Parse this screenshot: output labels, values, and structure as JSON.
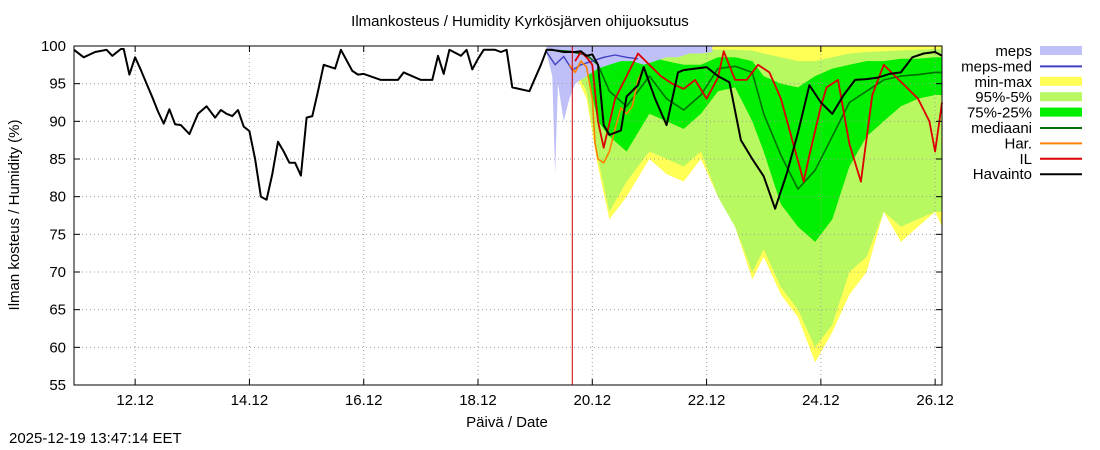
{
  "chart_data": {
    "type": "line",
    "title": "Ilmankosteus / Humidity  Kyrkösjärven ohijuoksutus",
    "xlabel": "Päivä / Date",
    "ylabel": "Ilman kosteus / Humidity (%)",
    "ylim": [
      55,
      100
    ],
    "xlim": [
      10.93,
      26.12
    ],
    "yticks": [
      55,
      60,
      65,
      70,
      75,
      80,
      85,
      90,
      95,
      100
    ],
    "xticks": [
      {
        "day": 12,
        "label": "12.12"
      },
      {
        "day": 14,
        "label": "14.12"
      },
      {
        "day": 16,
        "label": "16.12"
      },
      {
        "day": 18,
        "label": "18.12"
      },
      {
        "day": 20,
        "label": "20.12"
      },
      {
        "day": 22,
        "label": "22.12"
      },
      {
        "day": 24,
        "label": "24.12"
      },
      {
        "day": 26,
        "label": "26.12"
      }
    ],
    "grid": true,
    "forecast_start_day": 19.65,
    "legend_position": "right",
    "legend": [
      {
        "key": "meps",
        "label": "meps",
        "color": "#c0c0f8",
        "style": "box"
      },
      {
        "key": "meps_med",
        "label": "meps-med",
        "color": "#4040c0",
        "style": "line"
      },
      {
        "key": "minmax",
        "label": "min-max",
        "color": "#ffff55",
        "style": "box"
      },
      {
        "key": "p95_5",
        "label": "95%-5%",
        "color": "#b8f860",
        "style": "box"
      },
      {
        "key": "p75_25",
        "label": "75%-25%",
        "color": "#00ee00",
        "style": "box"
      },
      {
        "key": "median",
        "label": "mediaani",
        "color": "#007000",
        "style": "line"
      },
      {
        "key": "har",
        "label": "Har.",
        "color": "#ff8000",
        "style": "line"
      },
      {
        "key": "il",
        "label": "IL",
        "color": "#dd0000",
        "style": "line"
      },
      {
        "key": "obs",
        "label": "Havainto",
        "color": "#000000",
        "style": "line"
      }
    ],
    "series": [
      {
        "name": "Havainto",
        "key": "obs",
        "x": [
          10.93,
          11.1,
          11.3,
          11.5,
          11.6,
          11.75,
          11.8,
          11.9,
          12.0,
          12.1,
          12.2,
          12.3,
          12.4,
          12.5,
          12.6,
          12.7,
          12.8,
          12.95,
          13.1,
          13.25,
          13.4,
          13.5,
          13.6,
          13.7,
          13.8,
          13.9,
          14.0,
          14.1,
          14.2,
          14.3,
          14.4,
          14.5,
          14.6,
          14.7,
          14.8,
          14.9,
          15.0,
          15.1,
          15.2,
          15.3,
          15.5,
          15.6,
          15.8,
          15.9,
          16.0,
          16.3,
          16.6,
          16.7,
          17.0,
          17.2,
          17.3,
          17.4,
          17.5,
          17.7,
          17.8,
          17.9,
          18.0,
          18.1,
          18.3,
          18.4,
          18.5,
          18.6,
          18.9,
          19.1,
          19.2,
          19.3,
          19.5,
          19.7,
          19.8,
          19.9,
          20.0,
          20.1,
          20.2,
          20.3,
          20.5,
          20.6,
          20.8,
          20.9,
          21.1,
          21.3,
          21.5,
          21.6,
          21.8,
          22.0,
          22.2,
          22.4,
          22.6,
          22.8,
          23.0,
          23.2,
          23.4,
          23.6,
          23.8,
          24.0,
          24.2,
          24.4,
          24.6,
          24.8,
          25.0,
          25.2,
          25.4,
          25.6,
          25.8,
          26.0,
          26.12
        ],
        "y": [
          99.5,
          98.5,
          99.2,
          99.5,
          98.7,
          99.6,
          99.6,
          96.2,
          98.5,
          96.8,
          95,
          93.2,
          91.3,
          89.7,
          91.6,
          89.6,
          89.5,
          88.3,
          91,
          92,
          90.5,
          91.5,
          91,
          90.7,
          91.5,
          89.3,
          88.7,
          85,
          80,
          79.6,
          83,
          87.3,
          86,
          84.5,
          84.5,
          82.8,
          90.5,
          90.7,
          94,
          97.5,
          97,
          99.5,
          96.7,
          96.2,
          96.3,
          95.5,
          95.5,
          96.5,
          95.5,
          95.5,
          98.7,
          96.3,
          99.5,
          98.7,
          99.5,
          96.9,
          98.3,
          99.5,
          99.5,
          99.2,
          99.5,
          94.5,
          94,
          97.5,
          99.5,
          99.5,
          99.2,
          99.2,
          99.3,
          98.7,
          98.9,
          97.5,
          89.5,
          88.2,
          88.8,
          93.3,
          94.8,
          97.2,
          93,
          89.5,
          96.5,
          96.8,
          97,
          97.2,
          96,
          95.2,
          87.5,
          85,
          82.7,
          78.4,
          83,
          88.5,
          94.8,
          92.5,
          91,
          93.5,
          95.5,
          95.6,
          95.8,
          96.3,
          96.5,
          98.5,
          99,
          99.2,
          98.7
        ]
      },
      {
        "name": "mediaani",
        "key": "median",
        "x": [
          19.2,
          19.6,
          19.9,
          20.1,
          20.3,
          20.6,
          21.0,
          21.3,
          21.6,
          21.9,
          22.2,
          22.5,
          22.8,
          23.0,
          23.3,
          23.6,
          23.9,
          24.2,
          24.5,
          24.8,
          25.1,
          25.4,
          25.7,
          26.0,
          26.12
        ],
        "y": [
          99.5,
          99.3,
          98.8,
          97.5,
          94,
          92,
          96,
          93,
          91.5,
          93.5,
          97,
          97.3,
          96.5,
          91,
          85.5,
          81,
          83.5,
          88,
          92.5,
          94,
          95.5,
          96,
          96.2,
          96.5,
          96.5
        ]
      },
      {
        "name": "meps-med",
        "key": "meps_med",
        "x": [
          19.2,
          19.35,
          19.5,
          19.65,
          19.8,
          20.0,
          20.2,
          20.4,
          20.6,
          20.8
        ],
        "y": [
          99.2,
          97.5,
          98.6,
          96.8,
          97.5,
          98,
          98.5,
          98.8,
          98.5,
          98.3
        ]
      },
      {
        "name": "Har.",
        "key": "har",
        "x": [
          19.6,
          19.7,
          19.8,
          19.9,
          20.0,
          20.05,
          20.1,
          20.2,
          20.3,
          20.4,
          20.5,
          20.6,
          20.7,
          20.8,
          20.9
        ],
        "y": [
          97.5,
          96.5,
          98,
          97.2,
          93,
          87,
          85,
          84.5,
          86,
          89,
          91.8,
          91,
          92,
          95.5,
          97
        ]
      },
      {
        "name": "IL",
        "key": "il",
        "x": [
          19.7,
          19.8,
          19.9,
          20.0,
          20.1,
          20.2,
          20.4,
          20.6,
          20.8,
          21.0,
          21.2,
          21.4,
          21.6,
          21.8,
          22.0,
          22.2,
          22.3,
          22.5,
          22.7,
          22.9,
          23.1,
          23.3,
          23.5,
          23.7,
          23.8,
          24.0,
          24.1,
          24.3,
          24.5,
          24.7,
          24.9,
          25.1,
          25.3,
          25.5,
          25.7,
          25.9,
          26.0,
          26.12
        ],
        "y": [
          98,
          99.2,
          98.5,
          97.5,
          90,
          86.5,
          93,
          96,
          99,
          97.5,
          96,
          95,
          94.3,
          95.5,
          93,
          95.8,
          99.3,
          95.5,
          95.5,
          97.5,
          96.5,
          93,
          87.5,
          82,
          85.5,
          92,
          94.5,
          95.5,
          87,
          82,
          93.5,
          97.5,
          96,
          94.5,
          93,
          90,
          86,
          92.5
        ]
      }
    ],
    "bands": [
      {
        "name": "min-max",
        "key": "minmax",
        "x": [
          19.2,
          19.6,
          19.9,
          20.1,
          20.3,
          20.6,
          21.0,
          21.3,
          21.6,
          21.9,
          22.2,
          22.5,
          22.8,
          23.0,
          23.3,
          23.6,
          23.9,
          24.2,
          24.5,
          24.8,
          25.1,
          25.4,
          25.7,
          26.0,
          26.12
        ],
        "lower": [
          98.8,
          98,
          93,
          84,
          77,
          80,
          85,
          83,
          82,
          85,
          80,
          76,
          69,
          72,
          67,
          64,
          58,
          62,
          67,
          70,
          78,
          74,
          76,
          78,
          76
        ],
        "upper": [
          100,
          100,
          100,
          100,
          100,
          100,
          100,
          100,
          100,
          100,
          100,
          100,
          100,
          100,
          100,
          100,
          100,
          100,
          100,
          100,
          100,
          100,
          100,
          100,
          100
        ]
      },
      {
        "name": "95%-5%",
        "key": "p95_5",
        "x": [
          19.2,
          19.6,
          19.9,
          20.1,
          20.3,
          20.6,
          21.0,
          21.3,
          21.6,
          21.9,
          22.2,
          22.5,
          22.8,
          23.0,
          23.3,
          23.6,
          23.9,
          24.2,
          24.5,
          24.8,
          25.1,
          25.4,
          25.7,
          26.0,
          26.12
        ],
        "lower": [
          99,
          98.5,
          94,
          85,
          78,
          82,
          86,
          85,
          84,
          86,
          80,
          76,
          70,
          73,
          68,
          65,
          60,
          63,
          70,
          72,
          78,
          76,
          77,
          78,
          78
        ],
        "upper": [
          100,
          100,
          100,
          100,
          99.8,
          99.7,
          99.6,
          99.6,
          99.5,
          99.6,
          99.5,
          99.5,
          99.4,
          99,
          98.5,
          98,
          98,
          98.5,
          99,
          99.2,
          99.3,
          99.4,
          99.5,
          99.6,
          99.6
        ]
      },
      {
        "name": "75%-25%",
        "key": "p75_25",
        "x": [
          19.2,
          19.6,
          19.9,
          20.1,
          20.3,
          20.6,
          21.0,
          21.3,
          21.6,
          21.9,
          22.2,
          22.5,
          22.8,
          23.0,
          23.3,
          23.6,
          23.9,
          24.2,
          24.5,
          24.8,
          25.1,
          25.4,
          25.7,
          26.0,
          26.12
        ],
        "lower": [
          99.2,
          98.8,
          96.5,
          90,
          88,
          86,
          91,
          90,
          89,
          91,
          94,
          94.5,
          90,
          86,
          79,
          76,
          74,
          77,
          84,
          88,
          90,
          92,
          93,
          93.5,
          93.5
        ],
        "upper": [
          99.7,
          99.7,
          99.6,
          99.4,
          98.8,
          98,
          98.5,
          98,
          97.5,
          97.5,
          98.5,
          98.5,
          98,
          96,
          95,
          94.5,
          96,
          97,
          97.5,
          98,
          98,
          98.3,
          98.3,
          98.5,
          98.5
        ]
      },
      {
        "name": "meps",
        "key": "meps",
        "x": [
          19.2,
          19.3,
          19.35,
          19.4,
          19.5,
          19.6,
          19.7,
          19.9,
          20.1,
          20.3,
          20.5,
          20.7,
          20.9,
          21.1,
          21.3,
          21.5,
          21.7,
          21.9,
          22.1
        ],
        "lower": [
          99,
          96,
          83,
          95,
          90,
          93,
          95,
          96,
          97,
          97.5,
          98,
          98,
          97.5,
          98,
          98.5,
          98.5,
          99,
          99,
          99.2
        ],
        "upper": [
          100,
          100,
          100,
          100,
          100,
          100,
          100,
          100,
          100,
          100,
          100,
          100,
          100,
          100,
          100,
          100,
          100,
          100,
          100
        ]
      }
    ]
  },
  "timestamp": "2025-12-19 13:47:14 EET"
}
